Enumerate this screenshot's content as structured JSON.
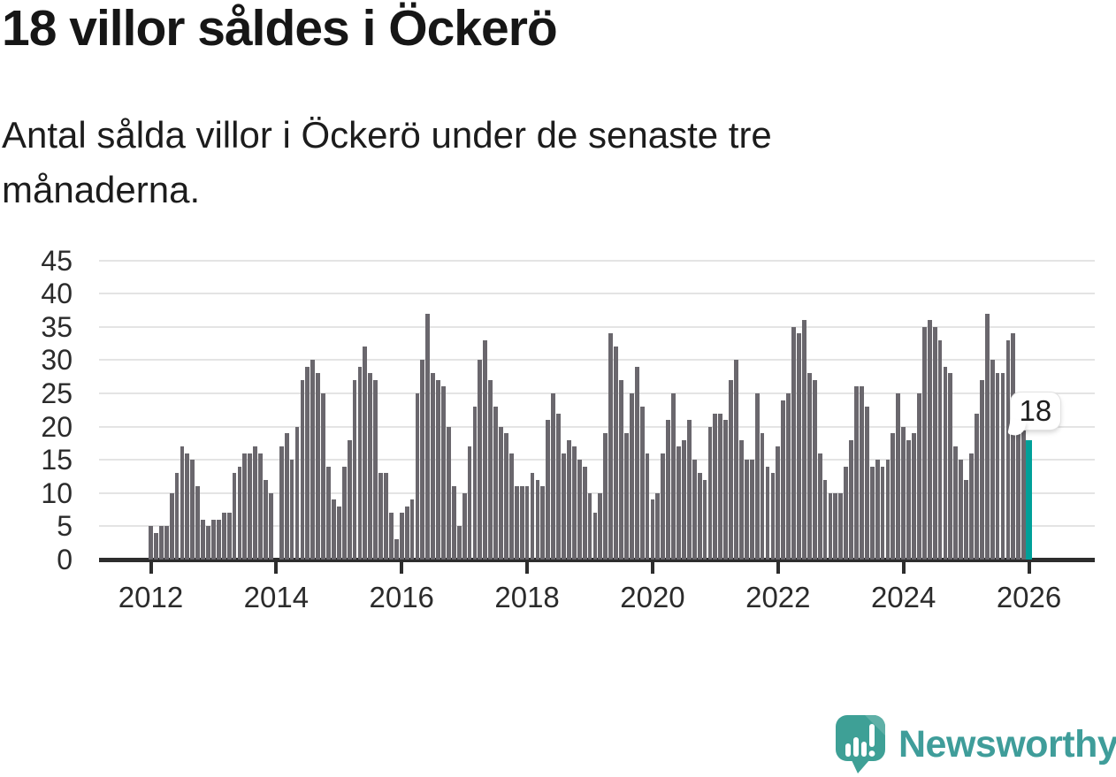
{
  "header": {
    "title": "18 villor såldes i Öckerö",
    "subtitle_line1": "Antal sålda villor i Öckerö under de senaste tre",
    "subtitle_line2": "månaderna."
  },
  "chart_data": {
    "type": "bar",
    "title": "18 villor såldes i Öckerö",
    "description": "Antal sålda villor i Öckerö under de senaste tre månaderna.",
    "x_start_month": "2012-01",
    "x_end_month": "2026-01",
    "frequency": "monthly",
    "values": [
      5,
      4,
      5,
      5,
      10,
      13,
      17,
      16,
      15,
      11,
      6,
      5,
      6,
      6,
      7,
      7,
      13,
      14,
      16,
      16,
      17,
      16,
      12,
      10,
      0,
      17,
      19,
      15,
      20,
      27,
      29,
      30,
      28,
      25,
      14,
      9,
      8,
      14,
      18,
      27,
      29,
      32,
      28,
      27,
      13,
      13,
      7,
      3,
      7,
      8,
      9,
      25,
      30,
      37,
      28,
      27,
      26,
      20,
      11,
      5,
      10,
      17,
      23,
      30,
      33,
      27,
      23,
      20,
      19,
      16,
      11,
      11,
      11,
      13,
      12,
      11,
      21,
      25,
      22,
      16,
      18,
      17,
      15,
      14,
      10,
      7,
      10,
      19,
      34,
      32,
      27,
      19,
      25,
      29,
      23,
      16,
      9,
      10,
      16,
      21,
      25,
      17,
      18,
      21,
      15,
      13,
      12,
      20,
      22,
      22,
      21,
      27,
      30,
      18,
      15,
      15,
      25,
      19,
      14,
      13,
      17,
      24,
      25,
      35,
      34,
      36,
      28,
      27,
      16,
      12,
      10,
      10,
      10,
      14,
      18,
      26,
      26,
      23,
      14,
      15,
      14,
      15,
      19,
      25,
      20,
      18,
      19,
      25,
      35,
      36,
      35,
      33,
      29,
      28,
      17,
      15,
      12,
      16,
      22,
      27,
      37,
      30,
      28,
      28,
      33,
      34,
      20,
      21,
      18
    ],
    "highlight": {
      "index": 168,
      "value": 18,
      "label": "18"
    },
    "ylim": [
      0,
      45
    ],
    "y_ticks": [
      0,
      5,
      10,
      15,
      20,
      25,
      30,
      35,
      40,
      45
    ],
    "x_tick_years": [
      2012,
      2014,
      2016,
      2018,
      2020,
      2022,
      2024,
      2026
    ],
    "grid": true,
    "legend": "none",
    "colors": {
      "bar": "#6a676d",
      "highlight": "#00a099",
      "grid": "#e4e4e4",
      "axis": "#2d2d2d",
      "label": "#2b2b2b"
    }
  },
  "footer": {
    "brand": "Newsworthy"
  }
}
